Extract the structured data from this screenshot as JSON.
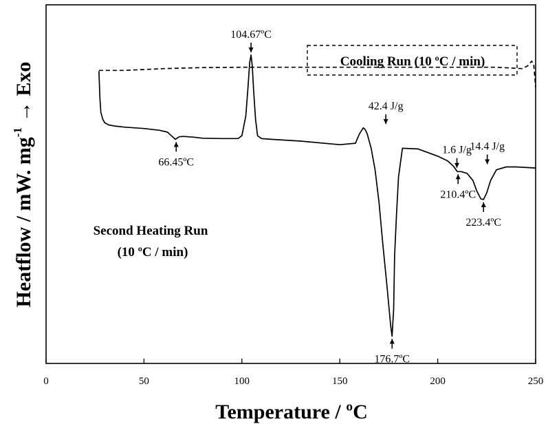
{
  "chart_data": {
    "type": "line",
    "title": "",
    "xlabel": "Temperature / ºC",
    "ylabel": "Heatflow / mW. mg",
    "ylabel_superscript": "-1",
    "ylabel_suffix": "→ Exo",
    "xlim": [
      0,
      250
    ],
    "ylim": [
      0,
      1
    ],
    "x_ticks": [
      0,
      50,
      100,
      150,
      200,
      250
    ],
    "x_tick_labels": [
      "0",
      "50",
      "100",
      "150",
      "200",
      "250"
    ],
    "grid": false,
    "series": [
      {
        "name": "Cooling Run (10 ºC / min)",
        "style": "dashed",
        "x": [
          27,
          40,
          60,
          80,
          100,
          120,
          150,
          180,
          200,
          230,
          243,
          246,
          248,
          249,
          250
        ],
        "y": [
          0.817,
          0.817,
          0.822,
          0.825,
          0.826,
          0.826,
          0.826,
          0.826,
          0.826,
          0.826,
          0.822,
          0.83,
          0.843,
          0.835,
          0.77
        ]
      },
      {
        "name": "Second Heating Run (10 ºC / min)",
        "style": "solid",
        "x": [
          27,
          27.5,
          28,
          29,
          30,
          32,
          35,
          40,
          50,
          58,
          62,
          64,
          66,
          68,
          70,
          75,
          80,
          90,
          98,
          100,
          102,
          103,
          104,
          104.67,
          105.3,
          106,
          107,
          108,
          110,
          115,
          130,
          150,
          158,
          160,
          162,
          163,
          164,
          166,
          168,
          170,
          172,
          174,
          176,
          176.7,
          177.5,
          178,
          179,
          180,
          182,
          190,
          200,
          205,
          208,
          210,
          212,
          215,
          218,
          220,
          222,
          223.4,
          225,
          227,
          230,
          235,
          240,
          250
        ],
        "y": [
          0.815,
          0.74,
          0.7,
          0.68,
          0.671,
          0.665,
          0.662,
          0.659,
          0.655,
          0.65,
          0.645,
          0.635,
          0.625,
          0.632,
          0.633,
          0.631,
          0.628,
          0.627,
          0.627,
          0.635,
          0.69,
          0.76,
          0.84,
          0.86,
          0.83,
          0.76,
          0.68,
          0.635,
          0.627,
          0.625,
          0.62,
          0.61,
          0.614,
          0.64,
          0.657,
          0.652,
          0.64,
          0.6,
          0.54,
          0.45,
          0.33,
          0.22,
          0.105,
          0.076,
          0.15,
          0.3,
          0.42,
          0.52,
          0.6,
          0.598,
          0.578,
          0.565,
          0.55,
          0.535,
          0.535,
          0.53,
          0.51,
          0.48,
          0.459,
          0.457,
          0.475,
          0.51,
          0.54,
          0.548,
          0.548,
          0.545
        ]
      }
    ],
    "annotations": [
      {
        "text": "104.67ºC",
        "x": 104.67,
        "y": 0.86,
        "arrow": "down"
      },
      {
        "text": "66.45ºC",
        "x": 66.45,
        "y": 0.625,
        "arrow": "up"
      },
      {
        "text": "42.4 J/g",
        "x": 173.5,
        "y": 0.66,
        "arrow": "down"
      },
      {
        "text": "176.7ºC",
        "x": 176.7,
        "y": 0.076,
        "arrow": "up"
      },
      {
        "text": "1.6 J/g",
        "x": 209.8,
        "y": 0.538,
        "arrow": "down"
      },
      {
        "text": "14.4 J/g",
        "x": 225.3,
        "y": 0.548,
        "arrow": "down"
      },
      {
        "text": "210.4ºC",
        "x": 210.4,
        "y": 0.535,
        "arrow": "up"
      },
      {
        "text": "223.4ºC",
        "x": 223.4,
        "y": 0.457,
        "arrow": "up"
      }
    ],
    "legend_text": {
      "cooling": "Cooling Run (10 ºC / min)",
      "heating_line1": "Second Heating Run",
      "heating_line2": "(10 ºC / min)"
    }
  }
}
